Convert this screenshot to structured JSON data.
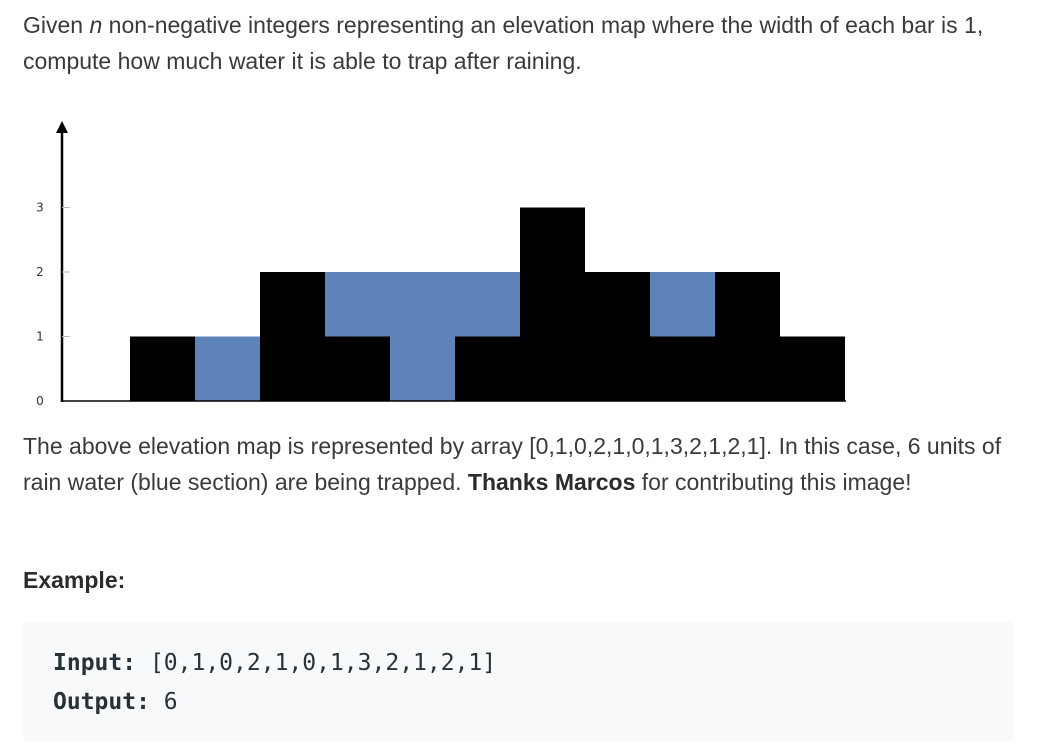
{
  "intro": {
    "pre": "Given ",
    "var": "n",
    "post": " non-negative integers representing an elevation map where the width of each bar is 1, compute how much water it is able to trap after raining."
  },
  "chart_data": {
    "type": "bar",
    "x": [
      0,
      1,
      2,
      3,
      4,
      5,
      6,
      7,
      8,
      9,
      10,
      11
    ],
    "elevation": [
      0,
      1,
      0,
      2,
      1,
      0,
      1,
      3,
      2,
      1,
      2,
      1
    ],
    "water": [
      0,
      0,
      1,
      0,
      1,
      2,
      1,
      0,
      0,
      1,
      0,
      0
    ],
    "yticks": [
      "0",
      "1",
      "2",
      "3"
    ],
    "ylim": [
      0,
      3
    ],
    "colors": {
      "elevation": "#000000",
      "water": "#5d83b8"
    },
    "title": "",
    "xlabel": "",
    "ylabel": ""
  },
  "description": {
    "text1": "The above elevation map is represented by array [0,1,0,2,1,0,1,3,2,1,2,1]. In this case, 6 units of rain water (blue section) are being trapped. ",
    "bold": "Thanks Marcos",
    "text2": " for contributing this image!"
  },
  "example": {
    "heading": "Example:",
    "input_label": "Input:",
    "input_value": " [0,1,0,2,1,0,1,3,2,1,2,1]",
    "output_label": "Output:",
    "output_value": " 6"
  }
}
